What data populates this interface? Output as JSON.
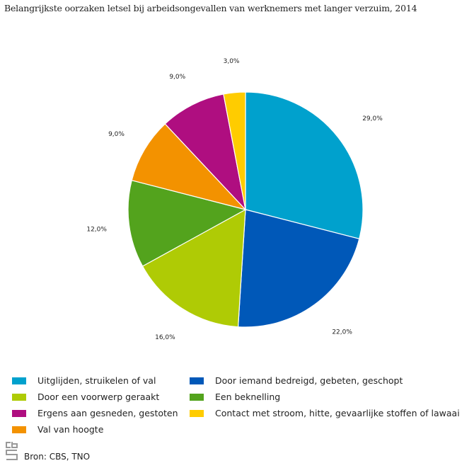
{
  "chart_data": {
    "type": "pie",
    "title": "Belangrijkste oorzaken letsel bij arbeidsongevallen van werknemers met langer verzuim, 2014",
    "slices": [
      {
        "label": "Uitglijden, struikelen of val",
        "value": 29.0,
        "display": "29,0%",
        "color": "#00a1cd"
      },
      {
        "label": "Door iemand bedreigd, gebeten, geschopt",
        "value": 22.0,
        "display": "22,0%",
        "color": "#0058b8"
      },
      {
        "label": "Door een voorwerp geraakt",
        "value": 16.0,
        "display": "16,0%",
        "color": "#afcb05"
      },
      {
        "label": "Een beknelling",
        "value": 12.0,
        "display": "12,0%",
        "color": "#53a31d"
      },
      {
        "label": "Val van hoogte",
        "value": 9.0,
        "display": "9,0%",
        "color": "#f39200"
      },
      {
        "label": "Ergens aan gesneden, gestoten",
        "value": 9.0,
        "display": "9,0%",
        "color": "#af0e80"
      },
      {
        "label": "Contact met stroom, hitte, gevaarlijke stoffen of lawaai",
        "value": 3.0,
        "display": "3,0%",
        "color": "#ffcc00"
      }
    ],
    "legend_position": "bottom"
  },
  "source": "Bron: CBS, TNO",
  "logo_text": "cbs"
}
